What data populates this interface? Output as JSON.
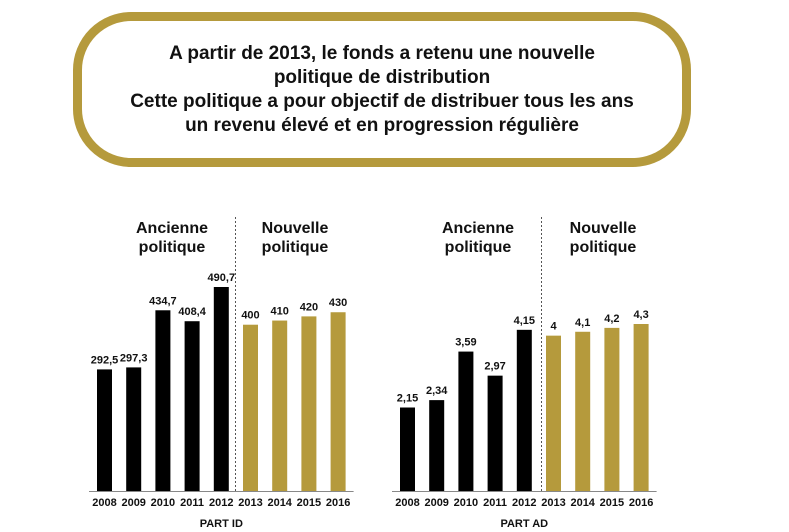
{
  "banner": {
    "lines": [
      "A partir de 2013, le fonds a retenu une nouvelle",
      "politique de distribution",
      "Cette politique a pour objectif de distribuer tous les ans",
      "un revenu élevé et en progression régulière"
    ]
  },
  "colors": {
    "old": "#000000",
    "new": "#B59A3C",
    "border": "#B59A3C",
    "axis": "#888888"
  },
  "chart_data": [
    {
      "type": "bar",
      "categories": [
        "2008",
        "2009",
        "2010",
        "2011",
        "2012",
        "2013",
        "2014",
        "2015",
        "2016"
      ],
      "values": [
        292.5,
        297.3,
        434.7,
        408.4,
        490.7,
        400,
        410,
        420,
        430
      ],
      "labels": [
        "292,5",
        "297,3",
        "434,7",
        "408,4",
        "490,7",
        "400",
        "410",
        "420",
        "430"
      ],
      "xlabel": "PART ID",
      "groups": [
        {
          "name": [
            "Ancienne",
            "politique"
          ],
          "count": 5,
          "color": "#000000"
        },
        {
          "name": [
            "Nouvelle",
            "politique"
          ],
          "count": 4,
          "color": "#B59A3C"
        }
      ],
      "ylim": [
        0,
        490.7
      ]
    },
    {
      "type": "bar",
      "categories": [
        "2008",
        "2009",
        "2010",
        "2011",
        "2012",
        "2013",
        "2014",
        "2015",
        "2016"
      ],
      "values": [
        2.15,
        2.34,
        3.59,
        2.97,
        4.15,
        4,
        4.1,
        4.2,
        4.3
      ],
      "labels": [
        "2,15",
        "2,34",
        "3,59",
        "2,97",
        "4,15",
        "4",
        "4,1",
        "4,2",
        "4,3"
      ],
      "xlabel": "PART AD",
      "groups": [
        {
          "name": [
            "Ancienne",
            "politique"
          ],
          "count": 5,
          "color": "#000000"
        },
        {
          "name": [
            "Nouvelle",
            "politique"
          ],
          "count": 4,
          "color": "#B59A3C"
        }
      ],
      "ylim": [
        0,
        4.3
      ]
    }
  ]
}
